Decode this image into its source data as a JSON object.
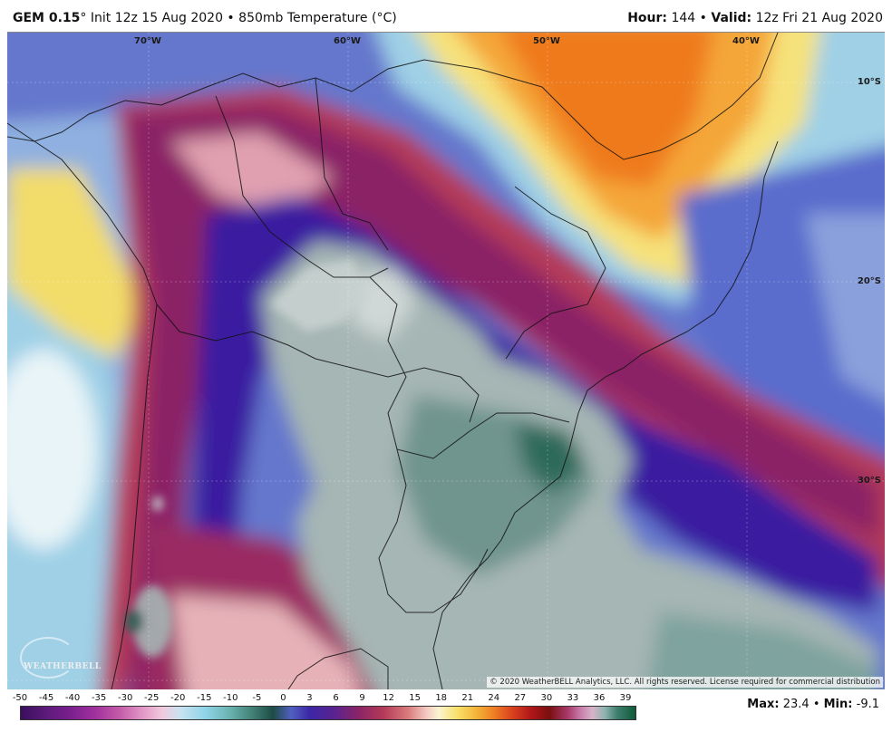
{
  "header": {
    "model": "GEM 0.15",
    "init": "° Init 12z 15 Aug 2020",
    "sep": " • ",
    "field": "850mb Temperature (°C)",
    "hour_label": "Hour:",
    "hour_value": "144",
    "valid_label": "Valid:",
    "valid_value": "12z Fri 21 Aug 2020"
  },
  "map": {
    "lon_labels": [
      "70°W",
      "60°W",
      "50°W",
      "40°W"
    ],
    "lat_labels": [
      "10°S",
      "20°S",
      "30°S"
    ],
    "copyright": "© 2020 WeatherBELL Analytics, LLC. All rights reserved. License required for commercial distribution",
    "logo": "WEATHERBELL"
  },
  "colorbar": {
    "ticks": [
      "-50",
      "-45",
      "-40",
      "-35",
      "-30",
      "-25",
      "-20",
      "-15",
      "-10",
      "-5",
      "0",
      "3",
      "6",
      "9",
      "12",
      "15",
      "18",
      "21",
      "24",
      "27",
      "30",
      "33",
      "36",
      "39"
    ]
  },
  "stats": {
    "max_label": "Max:",
    "max_value": "23.4",
    "min_label": "Min:",
    "min_value": "-9.1",
    "sep": " • "
  }
}
